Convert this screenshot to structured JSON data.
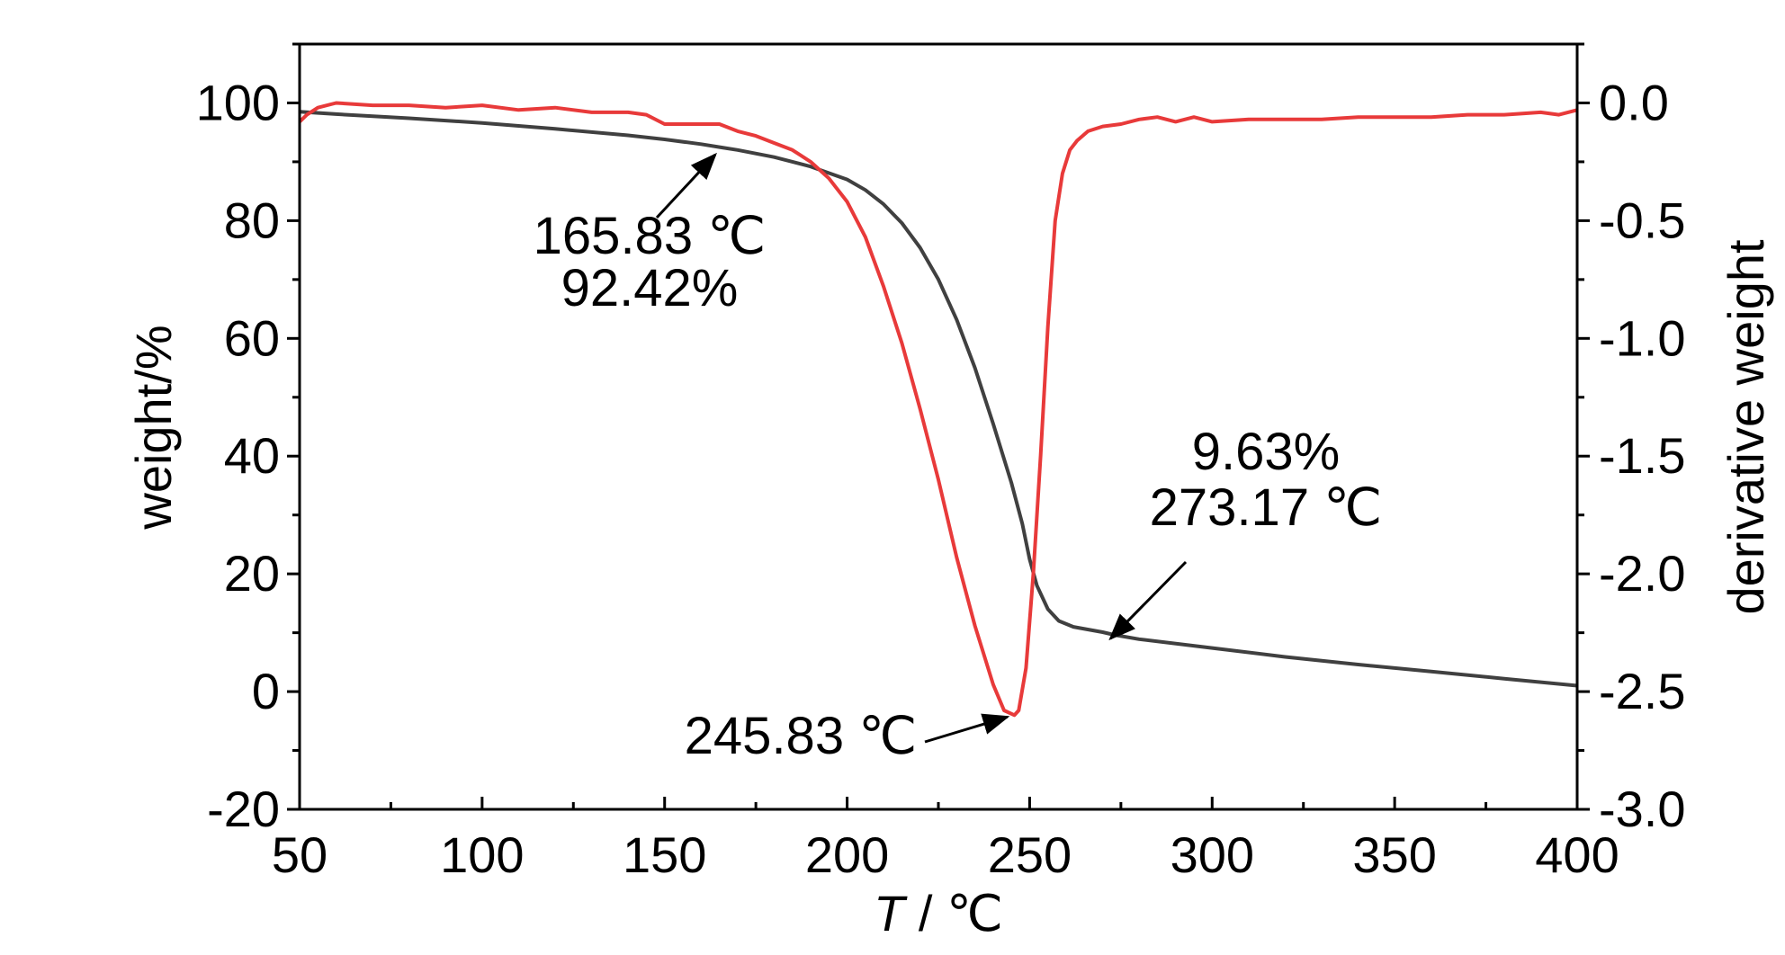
{
  "chart_data": {
    "type": "line",
    "title": "",
    "xlabel": {
      "italic": "T",
      "rest": " / ℃"
    },
    "ylabel_left": "weight/%",
    "ylabel_right": "derivative weight",
    "xlim": [
      50,
      400
    ],
    "ylim_left": [
      -20,
      110
    ],
    "ylim_right": [
      -3.0,
      0.25
    ],
    "x_ticks": [
      50,
      100,
      150,
      200,
      250,
      300,
      350,
      400
    ],
    "x_tick_labels": [
      "50",
      "100",
      "150",
      "200",
      "250",
      "300",
      "350",
      "400"
    ],
    "y_left_ticks": [
      -20,
      0,
      20,
      40,
      60,
      80,
      100
    ],
    "y_left_tick_labels": [
      "-20",
      "0",
      "20",
      "40",
      "60",
      "80",
      "100"
    ],
    "y_right_ticks": [
      -3.0,
      -2.5,
      -2.0,
      -1.5,
      -1.0,
      -0.5,
      0.0
    ],
    "y_right_tick_labels": [
      "-3.0",
      "-2.5",
      "-2.0",
      "-1.5",
      "-1.0",
      "-0.5",
      "0.0"
    ],
    "grid": false,
    "legend": "none",
    "series": [
      {
        "axis": "left",
        "color": "#404040",
        "x": [
          50,
          60,
          80,
          100,
          120,
          140,
          150,
          160,
          165.83,
          170,
          180,
          190,
          200,
          205,
          210,
          215,
          220,
          225,
          230,
          235,
          240,
          245,
          248,
          250,
          252,
          255,
          258,
          262,
          270,
          273.17,
          280,
          300,
          320,
          340,
          360,
          380,
          400
        ],
        "y": [
          98.5,
          98.1,
          97.4,
          96.6,
          95.6,
          94.5,
          93.8,
          93.0,
          92.42,
          92.0,
          90.8,
          89.2,
          87.0,
          85.2,
          82.8,
          79.6,
          75.4,
          70.0,
          63.2,
          55.0,
          45.5,
          35.5,
          28.5,
          22.5,
          18.0,
          14.0,
          12.0,
          11.0,
          10.1,
          9.63,
          8.9,
          7.4,
          5.9,
          4.6,
          3.4,
          2.2,
          1.0
        ]
      },
      {
        "axis": "right",
        "color": "#e83a3a",
        "x": [
          50,
          52,
          55,
          60,
          70,
          80,
          90,
          100,
          110,
          120,
          130,
          140,
          145,
          150,
          155,
          160,
          165,
          170,
          175,
          180,
          185,
          190,
          195,
          200,
          205,
          210,
          215,
          220,
          225,
          230,
          235,
          240,
          243,
          245.83,
          247,
          249,
          251,
          253,
          255,
          257,
          259,
          261,
          263,
          266,
          270,
          275,
          280,
          285,
          290,
          295,
          300,
          310,
          320,
          330,
          340,
          350,
          360,
          370,
          380,
          390,
          395,
          400
        ],
        "y": [
          -0.08,
          -0.05,
          -0.02,
          0.0,
          -0.01,
          -0.01,
          -0.02,
          -0.01,
          -0.03,
          -0.02,
          -0.04,
          -0.04,
          -0.05,
          -0.09,
          -0.09,
          -0.09,
          -0.09,
          -0.12,
          -0.14,
          -0.17,
          -0.2,
          -0.25,
          -0.32,
          -0.42,
          -0.57,
          -0.78,
          -1.02,
          -1.3,
          -1.6,
          -1.93,
          -2.22,
          -2.47,
          -2.58,
          -2.6,
          -2.58,
          -2.4,
          -2.0,
          -1.5,
          -0.95,
          -0.5,
          -0.3,
          -0.2,
          -0.16,
          -0.12,
          -0.1,
          -0.09,
          -0.07,
          -0.06,
          -0.08,
          -0.06,
          -0.08,
          -0.07,
          -0.07,
          -0.07,
          -0.06,
          -0.06,
          -0.06,
          -0.05,
          -0.05,
          -0.04,
          -0.05,
          -0.03
        ]
      }
    ],
    "annotations": [
      {
        "lines": [
          "165.83 ℃",
          "92.42%"
        ],
        "point": {
          "axis": "left",
          "x": 165.83,
          "y": 92.42
        }
      },
      {
        "lines": [
          "245.83 ℃"
        ],
        "point": {
          "axis": "right",
          "x": 245.83,
          "y": -2.6
        }
      },
      {
        "lines": [
          "9.63%",
          "273.17 ℃"
        ],
        "point": {
          "axis": "left",
          "x": 273.17,
          "y": 9.63
        }
      }
    ]
  }
}
